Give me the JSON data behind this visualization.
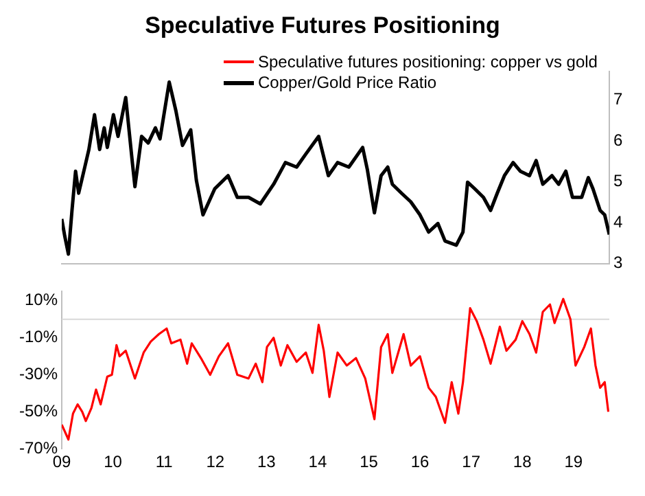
{
  "chart_data": [
    {
      "type": "line",
      "title": "Speculative Futures Positioning",
      "legend": "top",
      "tick_labels": "y",
      "xlim": [
        2009,
        2019.7
      ],
      "y2lim": [
        3,
        7.7
      ],
      "y2ticks": [
        3,
        4,
        5,
        6,
        7
      ],
      "series": [
        {
          "name": "Copper/Gold Price Ratio",
          "color": "#000000",
          "axis": "y2",
          "x": [
            2009.0,
            2009.06,
            2009.13,
            2009.2,
            2009.27,
            2009.33,
            2009.45,
            2009.53,
            2009.64,
            2009.74,
            2009.83,
            2009.89,
            2010.01,
            2010.1,
            2010.25,
            2010.38,
            2010.43,
            2010.56,
            2010.69,
            2010.83,
            2010.92,
            2011.1,
            2011.23,
            2011.36,
            2011.52,
            2011.63,
            2011.76,
            2011.99,
            2012.25,
            2012.43,
            2012.65,
            2012.88,
            2013.14,
            2013.37,
            2013.59,
            2013.77,
            2014.02,
            2014.21,
            2014.39,
            2014.61,
            2014.88,
            2014.97,
            2015.11,
            2015.24,
            2015.37,
            2015.46,
            2015.64,
            2015.82,
            2016.0,
            2016.17,
            2016.35,
            2016.49,
            2016.71,
            2016.84,
            2016.93,
            2017.07,
            2017.24,
            2017.38,
            2017.51,
            2017.65,
            2017.82,
            2017.96,
            2018.14,
            2018.27,
            2018.4,
            2018.58,
            2018.71,
            2018.85,
            2018.98,
            2019.16,
            2019.29,
            2019.38,
            2019.52,
            2019.61,
            2019.7
          ],
          "values": [
            4.09,
            3.66,
            3.23,
            4.3,
            5.26,
            4.72,
            5.36,
            5.79,
            6.64,
            5.79,
            6.32,
            5.84,
            6.64,
            6.11,
            7.06,
            5.47,
            4.88,
            6.11,
            5.95,
            6.32,
            6.05,
            7.44,
            6.74,
            5.89,
            6.27,
            5.04,
            4.19,
            4.83,
            5.15,
            4.62,
            4.62,
            4.46,
            4.94,
            5.47,
            5.36,
            5.68,
            6.11,
            5.15,
            5.47,
            5.36,
            5.84,
            5.31,
            4.24,
            5.15,
            5.36,
            4.94,
            4.72,
            4.51,
            4.19,
            3.77,
            3.98,
            3.55,
            3.45,
            3.77,
            4.99,
            4.83,
            4.62,
            4.3,
            4.72,
            5.15,
            5.47,
            5.26,
            5.15,
            5.52,
            4.94,
            5.15,
            4.94,
            5.26,
            4.62,
            4.62,
            5.1,
            4.83,
            4.3,
            4.19,
            3.71
          ]
        }
      ]
    },
    {
      "type": "line",
      "xlim": [
        2009,
        2019.7
      ],
      "xticks": [
        {
          "value": 2009,
          "label": "09"
        },
        {
          "value": 2010,
          "label": "10"
        },
        {
          "value": 2011,
          "label": "11"
        },
        {
          "value": 2012,
          "label": "12"
        },
        {
          "value": 2013,
          "label": "13"
        },
        {
          "value": 2014,
          "label": "14"
        },
        {
          "value": 2015,
          "label": "15"
        },
        {
          "value": 2016,
          "label": "16"
        },
        {
          "value": 2017,
          "label": "17"
        },
        {
          "value": 2018,
          "label": "18"
        },
        {
          "value": 2019,
          "label": "19"
        }
      ],
      "ylim": [
        -70,
        15
      ],
      "yticks": [
        {
          "value": -70,
          "label": "-70%"
        },
        {
          "value": -50,
          "label": "-50%"
        },
        {
          "value": -30,
          "label": "-30%"
        },
        {
          "value": -10,
          "label": "-10%"
        },
        {
          "value": 10,
          "label": "10%"
        }
      ],
      "ref_lines": [
        {
          "axis": "y",
          "value": 0,
          "color": "#d9d9d9"
        }
      ],
      "series": [
        {
          "name": "Speculative futures positioning: copper vs gold",
          "color": "#ff0000",
          "x": [
            2009.0,
            2009.13,
            2009.22,
            2009.31,
            2009.4,
            2009.47,
            2009.58,
            2009.67,
            2009.76,
            2009.89,
            2009.98,
            2010.07,
            2010.13,
            2010.25,
            2010.43,
            2010.6,
            2010.74,
            2010.9,
            2011.05,
            2011.14,
            2011.32,
            2011.45,
            2011.54,
            2011.72,
            2011.9,
            2012.07,
            2012.25,
            2012.43,
            2012.65,
            2012.79,
            2012.92,
            2013.01,
            2013.14,
            2013.28,
            2013.41,
            2013.59,
            2013.77,
            2013.9,
            2014.02,
            2014.12,
            2014.23,
            2014.39,
            2014.57,
            2014.75,
            2014.93,
            2015.11,
            2015.24,
            2015.37,
            2015.46,
            2015.68,
            2015.82,
            2016.0,
            2016.17,
            2016.31,
            2016.49,
            2016.62,
            2016.75,
            2016.84,
            2016.98,
            2017.11,
            2017.24,
            2017.38,
            2017.56,
            2017.69,
            2017.87,
            2018.0,
            2018.14,
            2018.27,
            2018.4,
            2018.54,
            2018.63,
            2018.8,
            2018.94,
            2019.04,
            2019.21,
            2019.34,
            2019.43,
            2019.52,
            2019.61,
            2019.68
          ],
          "values": [
            -57,
            -65,
            -51,
            -46,
            -50,
            -55,
            -48,
            -38,
            -46,
            -31,
            -30,
            -14,
            -20,
            -17,
            -32,
            -18,
            -12,
            -8,
            -5,
            -13,
            -11,
            -24,
            -13,
            -21,
            -30,
            -20,
            -13,
            -30,
            -32,
            -24,
            -34,
            -15,
            -10,
            -25,
            -14,
            -23,
            -18,
            -29,
            -3,
            -17,
            -42,
            -18,
            -25,
            -21,
            -32,
            -54,
            -15,
            -8,
            -29,
            -8,
            -25,
            -20,
            -37,
            -42,
            -56,
            -34,
            -51,
            -34,
            6,
            -1,
            -11,
            -24,
            -4,
            -17,
            -11,
            -1,
            -8,
            -18,
            4,
            8,
            -2,
            11,
            0,
            -25,
            -15,
            -5,
            -25,
            -37,
            -34,
            -50
          ]
        }
      ]
    }
  ]
}
